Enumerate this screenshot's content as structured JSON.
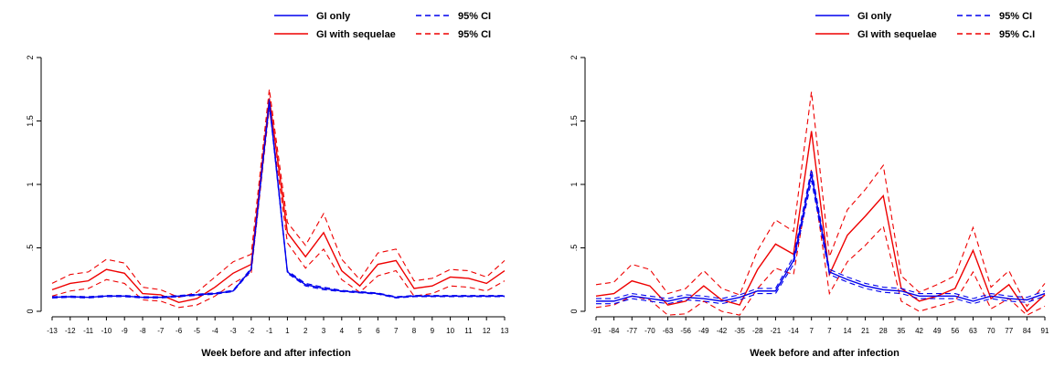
{
  "chart_data": [
    {
      "type": "line",
      "xlabel": "Week before and after infection",
      "ylabel": "",
      "x": [
        -13,
        -12,
        -11,
        -10,
        -9,
        -8,
        -7,
        -6,
        -5,
        -4,
        -3,
        -2,
        -1,
        1,
        2,
        3,
        4,
        5,
        6,
        7,
        8,
        9,
        10,
        11,
        12,
        13
      ],
      "x_tick_labels": [
        "-13",
        "-12",
        "-11",
        "-10",
        "-9",
        "-8",
        "-7",
        "-6",
        "-5",
        "-4",
        "-3",
        "-2",
        "-1",
        "1",
        "2",
        "3",
        "4",
        "5",
        "6",
        "7",
        "8",
        "9",
        "10",
        "11",
        "12",
        "13"
      ],
      "y_ticks": [
        0,
        0.5,
        1,
        1.5,
        2
      ],
      "y_tick_labels": [
        "0",
        ".5",
        "1",
        "1.5",
        "2"
      ],
      "ylim": [
        0,
        2.05
      ],
      "grid": false,
      "legend_position": "top",
      "legend": [
        {
          "label": "GI only",
          "color": "#0000ee",
          "dash": "solid"
        },
        {
          "label": "95% CI",
          "color": "#0000ee",
          "dash": "dashed"
        },
        {
          "label": "GI with sequelae",
          "color": "#ee0000",
          "dash": "solid"
        },
        {
          "label": "95% CI",
          "color": "#ee0000",
          "dash": "dashed"
        }
      ],
      "series": [
        {
          "name": "GI with sequelae",
          "role": "estimate",
          "color": "#ee0000",
          "dash": "solid",
          "values": [
            0.17,
            0.22,
            0.24,
            0.33,
            0.3,
            0.14,
            0.13,
            0.07,
            0.1,
            0.19,
            0.3,
            0.37,
            1.68,
            0.62,
            0.43,
            0.62,
            0.32,
            0.2,
            0.37,
            0.4,
            0.18,
            0.2,
            0.27,
            0.26,
            0.22,
            0.32
          ]
        },
        {
          "name": "95% CI",
          "role": "lower",
          "color": "#ee0000",
          "dash": "dashed",
          "values": [
            0.12,
            0.16,
            0.18,
            0.25,
            0.22,
            0.09,
            0.08,
            0.03,
            0.05,
            0.12,
            0.22,
            0.3,
            1.6,
            0.54,
            0.34,
            0.49,
            0.25,
            0.15,
            0.28,
            0.32,
            0.12,
            0.14,
            0.2,
            0.19,
            0.16,
            0.24
          ]
        },
        {
          "name": "95% CI",
          "role": "upper",
          "color": "#ee0000",
          "dash": "dashed",
          "values": [
            0.22,
            0.29,
            0.31,
            0.41,
            0.38,
            0.19,
            0.17,
            0.11,
            0.15,
            0.27,
            0.39,
            0.45,
            1.75,
            0.7,
            0.52,
            0.77,
            0.41,
            0.25,
            0.46,
            0.49,
            0.24,
            0.26,
            0.33,
            0.32,
            0.27,
            0.4
          ]
        },
        {
          "name": "GI only",
          "role": "estimate",
          "color": "#0000ee",
          "dash": "solid",
          "values": [
            0.11,
            0.115,
            0.11,
            0.12,
            0.12,
            0.11,
            0.11,
            0.12,
            0.13,
            0.14,
            0.16,
            0.33,
            1.65,
            0.31,
            0.21,
            0.18,
            0.16,
            0.15,
            0.14,
            0.11,
            0.12,
            0.12,
            0.12,
            0.12,
            0.12,
            0.12
          ]
        },
        {
          "name": "95% CI",
          "role": "lower",
          "color": "#0000ee",
          "dash": "dashed",
          "values": [
            0.105,
            0.11,
            0.105,
            0.115,
            0.115,
            0.105,
            0.105,
            0.115,
            0.125,
            0.135,
            0.155,
            0.32,
            1.63,
            0.3,
            0.2,
            0.17,
            0.155,
            0.145,
            0.135,
            0.105,
            0.115,
            0.115,
            0.115,
            0.115,
            0.115,
            0.115
          ]
        },
        {
          "name": "95% CI",
          "role": "upper",
          "color": "#0000ee",
          "dash": "dashed",
          "values": [
            0.115,
            0.12,
            0.115,
            0.125,
            0.125,
            0.115,
            0.115,
            0.125,
            0.135,
            0.145,
            0.165,
            0.34,
            1.67,
            0.32,
            0.22,
            0.19,
            0.165,
            0.155,
            0.145,
            0.115,
            0.125,
            0.125,
            0.125,
            0.125,
            0.125,
            0.125
          ]
        }
      ]
    },
    {
      "type": "line",
      "xlabel": "Week before and after infection",
      "ylabel": "",
      "x": [
        -91,
        -84,
        -77,
        -70,
        -63,
        -56,
        -49,
        -42,
        -35,
        -28,
        -21,
        -14,
        7,
        7,
        14,
        21,
        28,
        35,
        42,
        49,
        56,
        63,
        70,
        77,
        84,
        91
      ],
      "x_tick_labels": [
        "-91",
        "-84",
        "-77",
        "-70",
        "-63",
        "-56",
        "-49",
        "-42",
        "-35",
        "-28",
        "-21",
        "-14",
        "7",
        "7",
        "14",
        "21",
        "28",
        "35",
        "42",
        "49",
        "56",
        "63",
        "70",
        "77",
        "84",
        "91"
      ],
      "y_ticks": [
        0,
        0.5,
        1,
        1.5,
        2
      ],
      "y_tick_labels": [
        "0",
        ".5",
        "1",
        "1.5",
        "2"
      ],
      "ylim": [
        0,
        2.05
      ],
      "grid": false,
      "legend_position": "top",
      "legend": [
        {
          "label": "GI only",
          "color": "#0000ee",
          "dash": "solid"
        },
        {
          "label": "95% CI",
          "color": "#0000ee",
          "dash": "dashed"
        },
        {
          "label": "GI with sequelae",
          "color": "#ee0000",
          "dash": "solid"
        },
        {
          "label": "95% C.I",
          "color": "#ee0000",
          "dash": "dashed"
        }
      ],
      "series": [
        {
          "name": "GI with sequelae",
          "role": "estimate",
          "color": "#ee0000",
          "dash": "solid",
          "values": [
            0.12,
            0.14,
            0.24,
            0.2,
            0.05,
            0.08,
            0.2,
            0.09,
            0.05,
            0.33,
            0.53,
            0.45,
            1.42,
            0.29,
            0.6,
            0.75,
            0.91,
            0.18,
            0.08,
            0.12,
            0.18,
            0.48,
            0.1,
            0.21,
            0.0,
            0.13
          ]
        },
        {
          "name": "95% C.I",
          "role": "lower",
          "color": "#ee0000",
          "dash": "dashed",
          "values": [
            0.03,
            0.05,
            0.12,
            0.09,
            -0.03,
            -0.02,
            0.08,
            0.0,
            -0.03,
            0.18,
            0.34,
            0.29,
            1.12,
            0.14,
            0.39,
            0.52,
            0.67,
            0.08,
            0.0,
            0.04,
            0.08,
            0.31,
            0.02,
            0.1,
            -0.03,
            0.04
          ]
        },
        {
          "name": "95% C.I",
          "role": "upper",
          "color": "#ee0000",
          "dash": "dashed",
          "values": [
            0.21,
            0.23,
            0.37,
            0.33,
            0.14,
            0.18,
            0.32,
            0.18,
            0.13,
            0.48,
            0.72,
            0.63,
            1.73,
            0.43,
            0.8,
            0.96,
            1.15,
            0.28,
            0.15,
            0.21,
            0.28,
            0.66,
            0.19,
            0.32,
            0.04,
            0.22
          ]
        },
        {
          "name": "GI only",
          "role": "estimate",
          "color": "#0000ee",
          "dash": "solid",
          "values": [
            0.08,
            0.08,
            0.12,
            0.1,
            0.08,
            0.11,
            0.1,
            0.08,
            0.11,
            0.16,
            0.16,
            0.4,
            1.08,
            0.31,
            0.25,
            0.2,
            0.17,
            0.16,
            0.12,
            0.12,
            0.12,
            0.08,
            0.12,
            0.1,
            0.09,
            0.14
          ]
        },
        {
          "name": "95% CI",
          "role": "lower",
          "color": "#0000ee",
          "dash": "dashed",
          "values": [
            0.06,
            0.06,
            0.1,
            0.08,
            0.06,
            0.09,
            0.08,
            0.06,
            0.09,
            0.14,
            0.14,
            0.37,
            1.03,
            0.29,
            0.23,
            0.18,
            0.15,
            0.14,
            0.1,
            0.1,
            0.1,
            0.06,
            0.1,
            0.08,
            0.07,
            0.12
          ]
        },
        {
          "name": "95% CI",
          "role": "upper",
          "color": "#0000ee",
          "dash": "dashed",
          "values": [
            0.1,
            0.1,
            0.14,
            0.12,
            0.1,
            0.13,
            0.12,
            0.1,
            0.13,
            0.18,
            0.18,
            0.43,
            1.12,
            0.33,
            0.27,
            0.22,
            0.19,
            0.18,
            0.14,
            0.14,
            0.14,
            0.1,
            0.14,
            0.12,
            0.11,
            0.16
          ]
        }
      ]
    }
  ]
}
